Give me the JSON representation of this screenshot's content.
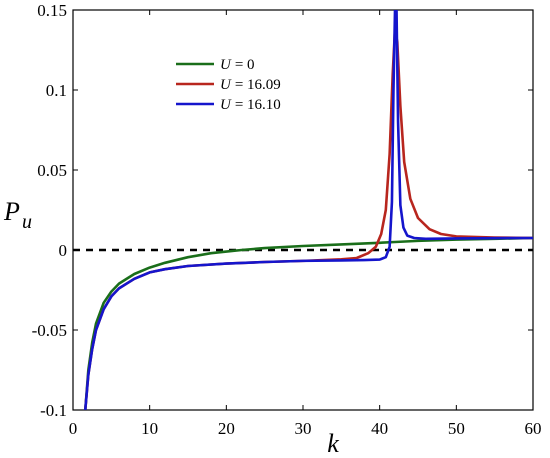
{
  "chart_data": {
    "type": "line",
    "xlabel": "k",
    "ylabel_main": "P",
    "ylabel_sub": "u",
    "xlim": [
      0,
      60
    ],
    "ylim": [
      -0.1,
      0.15
    ],
    "x_ticks": [
      0,
      10,
      20,
      30,
      40,
      50,
      60
    ],
    "x_tick_labels": [
      "0",
      "10",
      "20",
      "30",
      "40",
      "50",
      "60"
    ],
    "y_ticks": [
      -0.1,
      -0.05,
      0,
      0.05,
      0.1,
      0.15
    ],
    "y_tick_labels": [
      "-0.1",
      "-0.05",
      "0",
      "0.05",
      "0.1",
      "0.15"
    ],
    "grid": false,
    "legend_position": "upper-left",
    "reference_line": {
      "y": 0,
      "style": "dashed",
      "color": "#000000"
    },
    "series": [
      {
        "name_var": "U",
        "name_value": "= 0",
        "color": "#1a6e1a",
        "x": [
          1.6,
          2,
          2.5,
          3,
          4,
          5,
          6,
          8,
          10,
          12,
          15,
          18,
          20,
          22,
          25,
          30,
          35,
          40,
          42,
          45,
          50,
          55,
          60
        ],
        "y": [
          -0.1,
          -0.075,
          -0.058,
          -0.046,
          -0.033,
          -0.026,
          -0.021,
          -0.015,
          -0.011,
          -0.008,
          -0.0045,
          -0.002,
          -0.001,
          0.0,
          0.0012,
          0.0025,
          0.0035,
          0.0045,
          0.005,
          0.0057,
          0.0065,
          0.007,
          0.0075
        ]
      },
      {
        "name_var": "U",
        "name_value": "= 16.09",
        "color": "#b8261e",
        "x": [
          1.6,
          2,
          2.5,
          3,
          4,
          5,
          6,
          8,
          10,
          12,
          15,
          20,
          25,
          30,
          35,
          37,
          38.5,
          39.5,
          40.2,
          40.8,
          41.3,
          41.7,
          42.0,
          42.3,
          42.7,
          43.2,
          44,
          45,
          46.5,
          48,
          50,
          55,
          60
        ],
        "y": [
          -0.1,
          -0.078,
          -0.062,
          -0.05,
          -0.037,
          -0.029,
          -0.024,
          -0.018,
          -0.014,
          -0.012,
          -0.01,
          -0.0085,
          -0.0075,
          -0.0068,
          -0.0058,
          -0.005,
          -0.002,
          0.002,
          0.01,
          0.025,
          0.06,
          0.11,
          0.138,
          0.13,
          0.09,
          0.055,
          0.032,
          0.02,
          0.013,
          0.01,
          0.0085,
          0.0078,
          0.0075
        ]
      },
      {
        "name_var": "U",
        "name_value": "= 16.10",
        "color": "#1515cc",
        "x": [
          1.6,
          2,
          2.5,
          3,
          4,
          5,
          6,
          8,
          10,
          12,
          15,
          20,
          25,
          30,
          35,
          38,
          40,
          40.8,
          41.3,
          41.6,
          41.8,
          42.0,
          42.2,
          42.4,
          42.7,
          43.1,
          43.6,
          44.5,
          46,
          50,
          55,
          60
        ],
        "y": [
          -0.1,
          -0.078,
          -0.062,
          -0.05,
          -0.037,
          -0.029,
          -0.024,
          -0.018,
          -0.014,
          -0.012,
          -0.01,
          -0.0085,
          -0.0075,
          -0.0068,
          -0.0065,
          -0.0063,
          -0.006,
          -0.0045,
          0.002,
          0.03,
          0.1,
          0.15,
          0.15,
          0.08,
          0.028,
          0.014,
          0.009,
          0.0075,
          0.007,
          0.0072,
          0.0074,
          0.0075
        ]
      }
    ]
  }
}
